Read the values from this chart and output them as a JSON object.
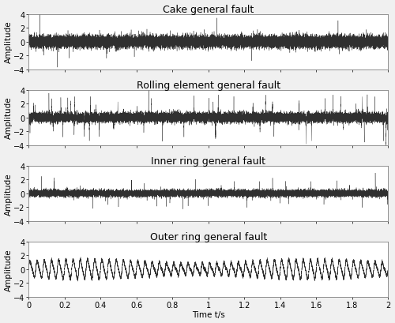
{
  "titles": [
    "Cake general fault",
    "Rolling element general fault",
    "Inner ring general fault",
    "Outer ring general fault"
  ],
  "xlabel": "Time t/s",
  "ylabel": "Amplitude",
  "xlim": [
    0,
    2
  ],
  "ylim": [
    -4,
    4
  ],
  "yticks": [
    -4,
    -2,
    0,
    2,
    4
  ],
  "xticks": [
    0,
    0.2,
    0.4,
    0.6,
    0.8,
    1.0,
    1.2,
    1.4,
    1.6,
    1.8,
    2.0
  ],
  "xtick_labels": [
    "0",
    "0.2",
    "0.4",
    "0.6",
    "0.8",
    "1",
    "1.2",
    "1.4",
    "1.6",
    "1.8",
    "2"
  ],
  "n_samples": 20000,
  "fs": 10000,
  "line_color": "#303030",
  "line_width": 0.25,
  "figure_facecolor": "#f0f0f0",
  "axes_facecolor": "#ffffff",
  "title_fontsize": 9,
  "label_fontsize": 7.5,
  "tick_fontsize": 7
}
